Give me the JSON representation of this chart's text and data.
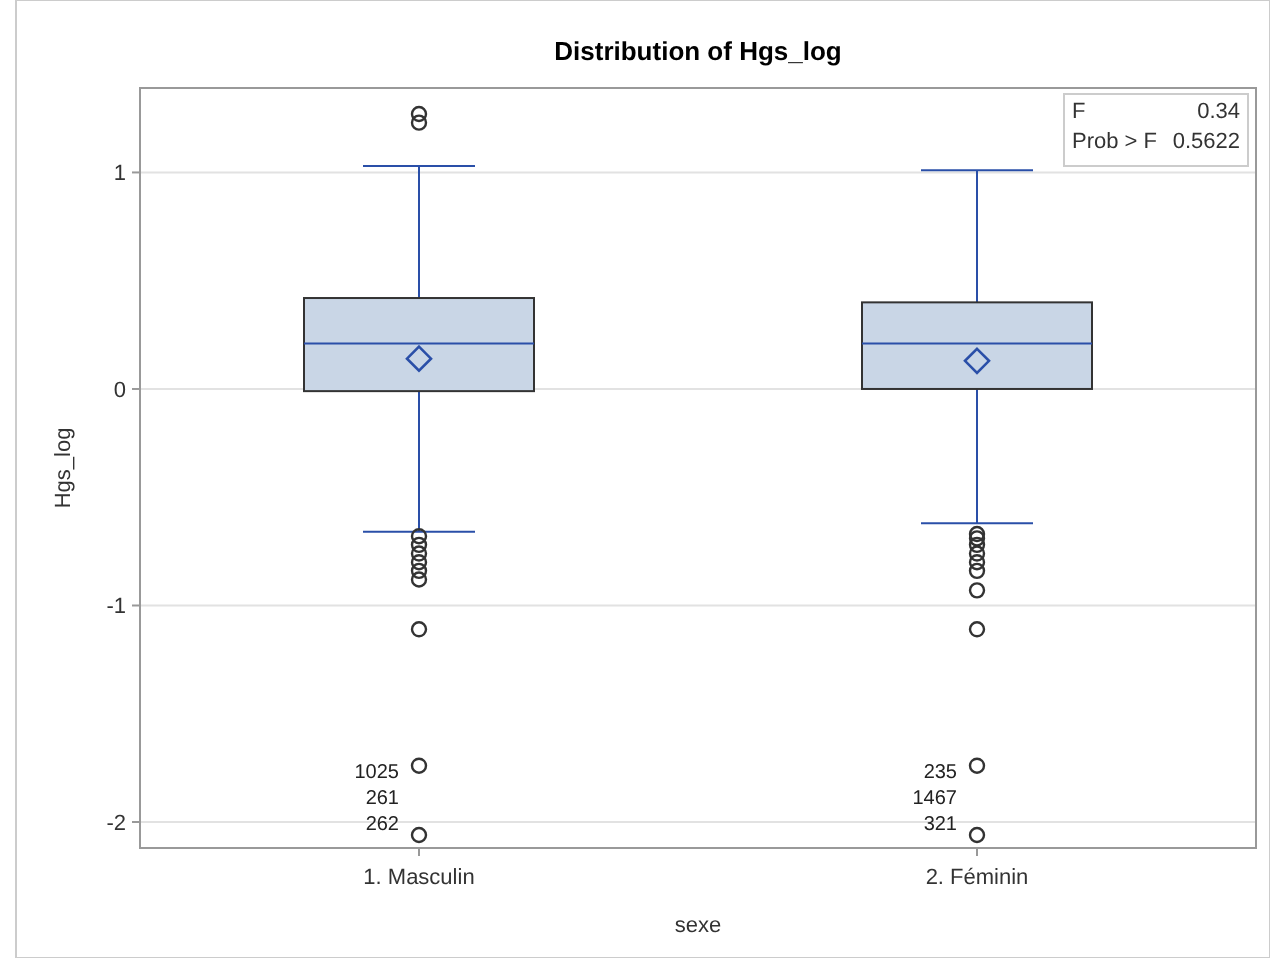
{
  "chart_data": {
    "type": "box",
    "title": "Distribution of Hgs_log",
    "xlabel": "sexe",
    "ylabel": "Hgs_log",
    "categories": [
      "1. Masculin",
      "2. Féminin"
    ],
    "color": "#c9d6e6",
    "boxes": [
      {
        "low": -0.66,
        "q1": -0.01,
        "median": 0.21,
        "q3": 0.42,
        "high": 1.03,
        "mean": 0.14,
        "outliers": [
          1.27,
          1.23,
          -0.68,
          -0.72,
          -0.76,
          -0.8,
          -0.84,
          -0.88,
          -1.11,
          -1.74,
          -2.06
        ]
      },
      {
        "low": -0.62,
        "q1": 0.0,
        "median": 0.21,
        "q3": 0.4,
        "high": 1.01,
        "mean": 0.13,
        "outliers": [
          -0.67,
          -0.69,
          -0.72,
          -0.76,
          -0.8,
          -0.84,
          -0.93,
          -1.11,
          -1.74,
          -2.06
        ]
      }
    ],
    "ylim": [
      -2.12,
      1.39
    ],
    "yticks": [
      -2,
      -1,
      0,
      1
    ],
    "grid": "y",
    "annotations": [
      "F 0.34",
      "Prob > F 0.5622",
      "1025",
      "261",
      "262",
      "235",
      "1467",
      "321"
    ]
  }
}
